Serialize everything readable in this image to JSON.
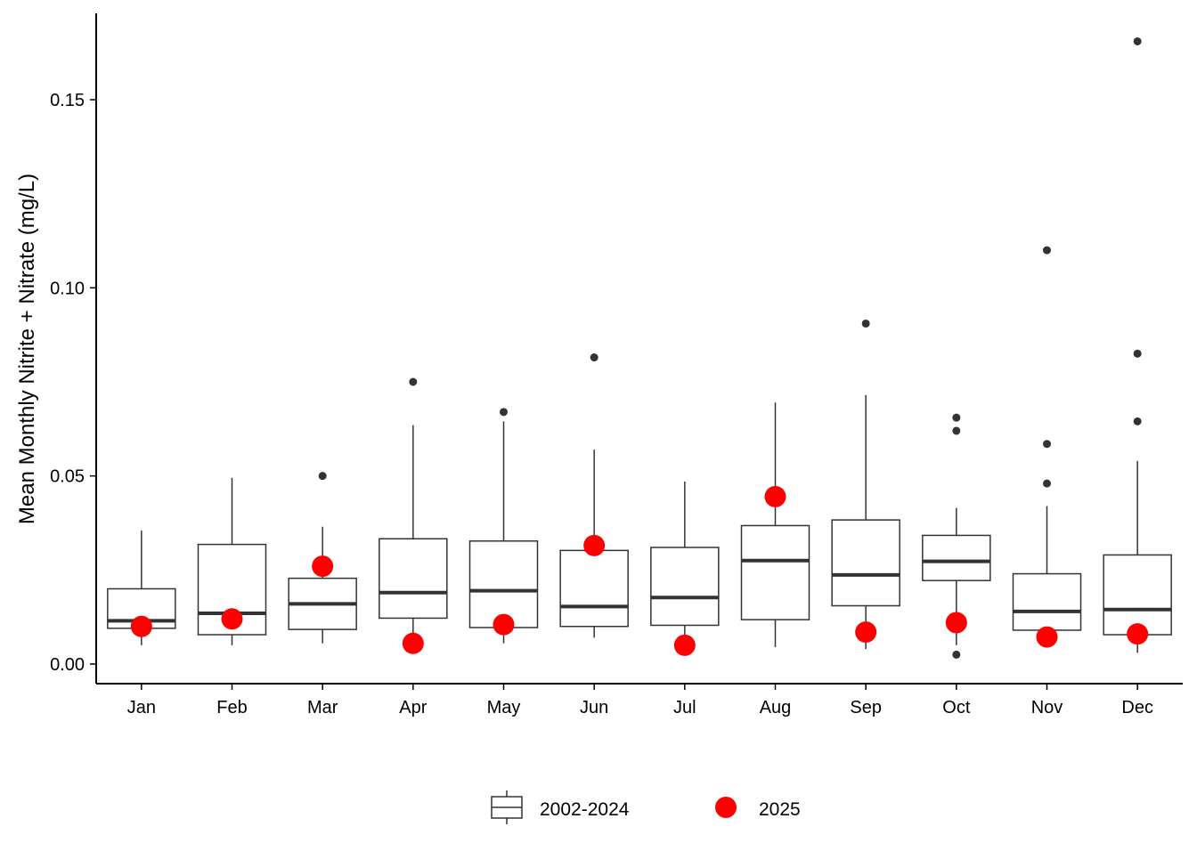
{
  "chart_data": {
    "type": "boxplot",
    "ylabel": "Mean Monthly Nitrite + Nitrate (mg/L)",
    "xlabel": "",
    "ylim": [
      -0.005,
      0.174
    ],
    "yticks": [
      0.0,
      0.05,
      0.1,
      0.15
    ],
    "ytick_labels": [
      "0.00",
      "0.05",
      "0.10",
      "0.15"
    ],
    "grid": false,
    "legend_position": "bottom",
    "legend": {
      "box_label": "2002-2024",
      "point_label": "2025"
    },
    "colors": {
      "box_stroke": "#333333",
      "outlier": "#333333",
      "point_2025": "#ff0000"
    },
    "categories": [
      "Jan",
      "Feb",
      "Mar",
      "Apr",
      "May",
      "Jun",
      "Jul",
      "Aug",
      "Sep",
      "Oct",
      "Nov",
      "Dec"
    ],
    "boxes": [
      {
        "month": "Jan",
        "whisker_low": 0.005,
        "q1": 0.0095,
        "median": 0.0115,
        "q3": 0.02,
        "whisker_high": 0.0355,
        "outliers": []
      },
      {
        "month": "Feb",
        "whisker_low": 0.005,
        "q1": 0.0078,
        "median": 0.0135,
        "q3": 0.0318,
        "whisker_high": 0.0495,
        "outliers": []
      },
      {
        "month": "Mar",
        "whisker_low": 0.0055,
        "q1": 0.0092,
        "median": 0.016,
        "q3": 0.0228,
        "whisker_high": 0.0365,
        "outliers": [
          0.05
        ]
      },
      {
        "month": "Apr",
        "whisker_low": 0.0065,
        "q1": 0.0122,
        "median": 0.019,
        "q3": 0.0333,
        "whisker_high": 0.0635,
        "outliers": [
          0.075
        ]
      },
      {
        "month": "May",
        "whisker_low": 0.0055,
        "q1": 0.0097,
        "median": 0.0195,
        "q3": 0.0327,
        "whisker_high": 0.0645,
        "outliers": [
          0.067
        ]
      },
      {
        "month": "Jun",
        "whisker_low": 0.007,
        "q1": 0.01,
        "median": 0.0153,
        "q3": 0.0302,
        "whisker_high": 0.057,
        "outliers": [
          0.0815
        ]
      },
      {
        "month": "Jul",
        "whisker_low": 0.0055,
        "q1": 0.0103,
        "median": 0.0177,
        "q3": 0.031,
        "whisker_high": 0.0485,
        "outliers": []
      },
      {
        "month": "Aug",
        "whisker_low": 0.0045,
        "q1": 0.0118,
        "median": 0.0275,
        "q3": 0.0368,
        "whisker_high": 0.0695,
        "outliers": []
      },
      {
        "month": "Sep",
        "whisker_low": 0.004,
        "q1": 0.0155,
        "median": 0.0237,
        "q3": 0.0383,
        "whisker_high": 0.0715,
        "outliers": [
          0.0905
        ]
      },
      {
        "month": "Oct",
        "whisker_low": 0.005,
        "q1": 0.0222,
        "median": 0.0273,
        "q3": 0.0342,
        "whisker_high": 0.0415,
        "outliers": [
          0.0655,
          0.062,
          0.0025
        ]
      },
      {
        "month": "Nov",
        "whisker_low": 0.006,
        "q1": 0.009,
        "median": 0.014,
        "q3": 0.024,
        "whisker_high": 0.042,
        "outliers": [
          0.11,
          0.0585,
          0.048
        ]
      },
      {
        "month": "Dec",
        "whisker_low": 0.003,
        "q1": 0.0078,
        "median": 0.0145,
        "q3": 0.029,
        "whisker_high": 0.054,
        "outliers": [
          0.1655,
          0.0825,
          0.0645
        ]
      }
    ],
    "points_2025": [
      {
        "month": "Jan",
        "value": 0.01
      },
      {
        "month": "Feb",
        "value": 0.012
      },
      {
        "month": "Mar",
        "value": 0.026
      },
      {
        "month": "Apr",
        "value": 0.0055
      },
      {
        "month": "May",
        "value": 0.0105
      },
      {
        "month": "Jun",
        "value": 0.0315
      },
      {
        "month": "Jul",
        "value": 0.005
      },
      {
        "month": "Aug",
        "value": 0.0445
      },
      {
        "month": "Sep",
        "value": 0.0085
      },
      {
        "month": "Oct",
        "value": 0.011
      },
      {
        "month": "Nov",
        "value": 0.0072
      },
      {
        "month": "Dec",
        "value": 0.008
      }
    ]
  }
}
